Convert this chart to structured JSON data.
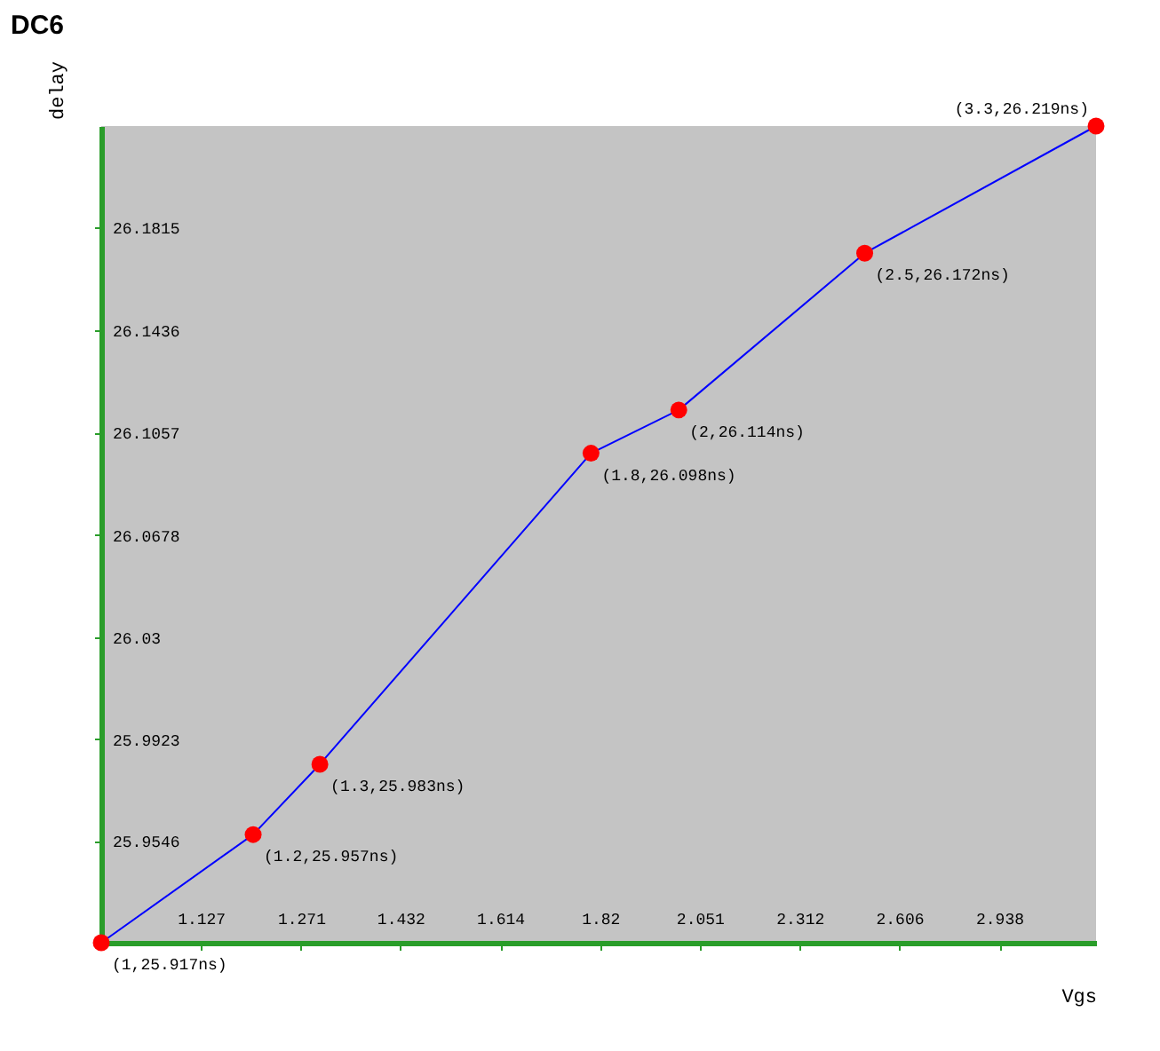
{
  "chart_data": {
    "type": "line",
    "title": "DC6",
    "xlabel": "Vgs",
    "ylabel": "delay",
    "x": [
      1,
      1.2,
      1.3,
      1.8,
      2,
      2.5,
      3.3
    ],
    "series": [
      {
        "color": "#0000ff",
        "values": [
          25.917,
          25.957,
          25.983,
          26.098,
          26.114,
          26.172,
          26.219
        ],
        "value_labels": [
          "(1,25.917ns)",
          "(1.2,25.957ns)",
          "(1.3,25.983ns)",
          "(1.8,26.098ns)",
          "(2,26.114ns)",
          "(2.5,26.172ns)",
          "(3.3,26.219ns)"
        ]
      }
    ],
    "marker": "circle",
    "log": "x",
    "xlim": [
      1,
      3.3
    ],
    "xticks": [
      1.127,
      1.271,
      1.432,
      1.614,
      1.82,
      2.051,
      2.312,
      2.606,
      2.938
    ],
    "ylim": [
      25.917,
      26.219
    ],
    "yticks": [
      25.9546,
      25.9923,
      26.03,
      26.0678,
      26.1057,
      26.1436,
      26.1815
    ]
  }
}
